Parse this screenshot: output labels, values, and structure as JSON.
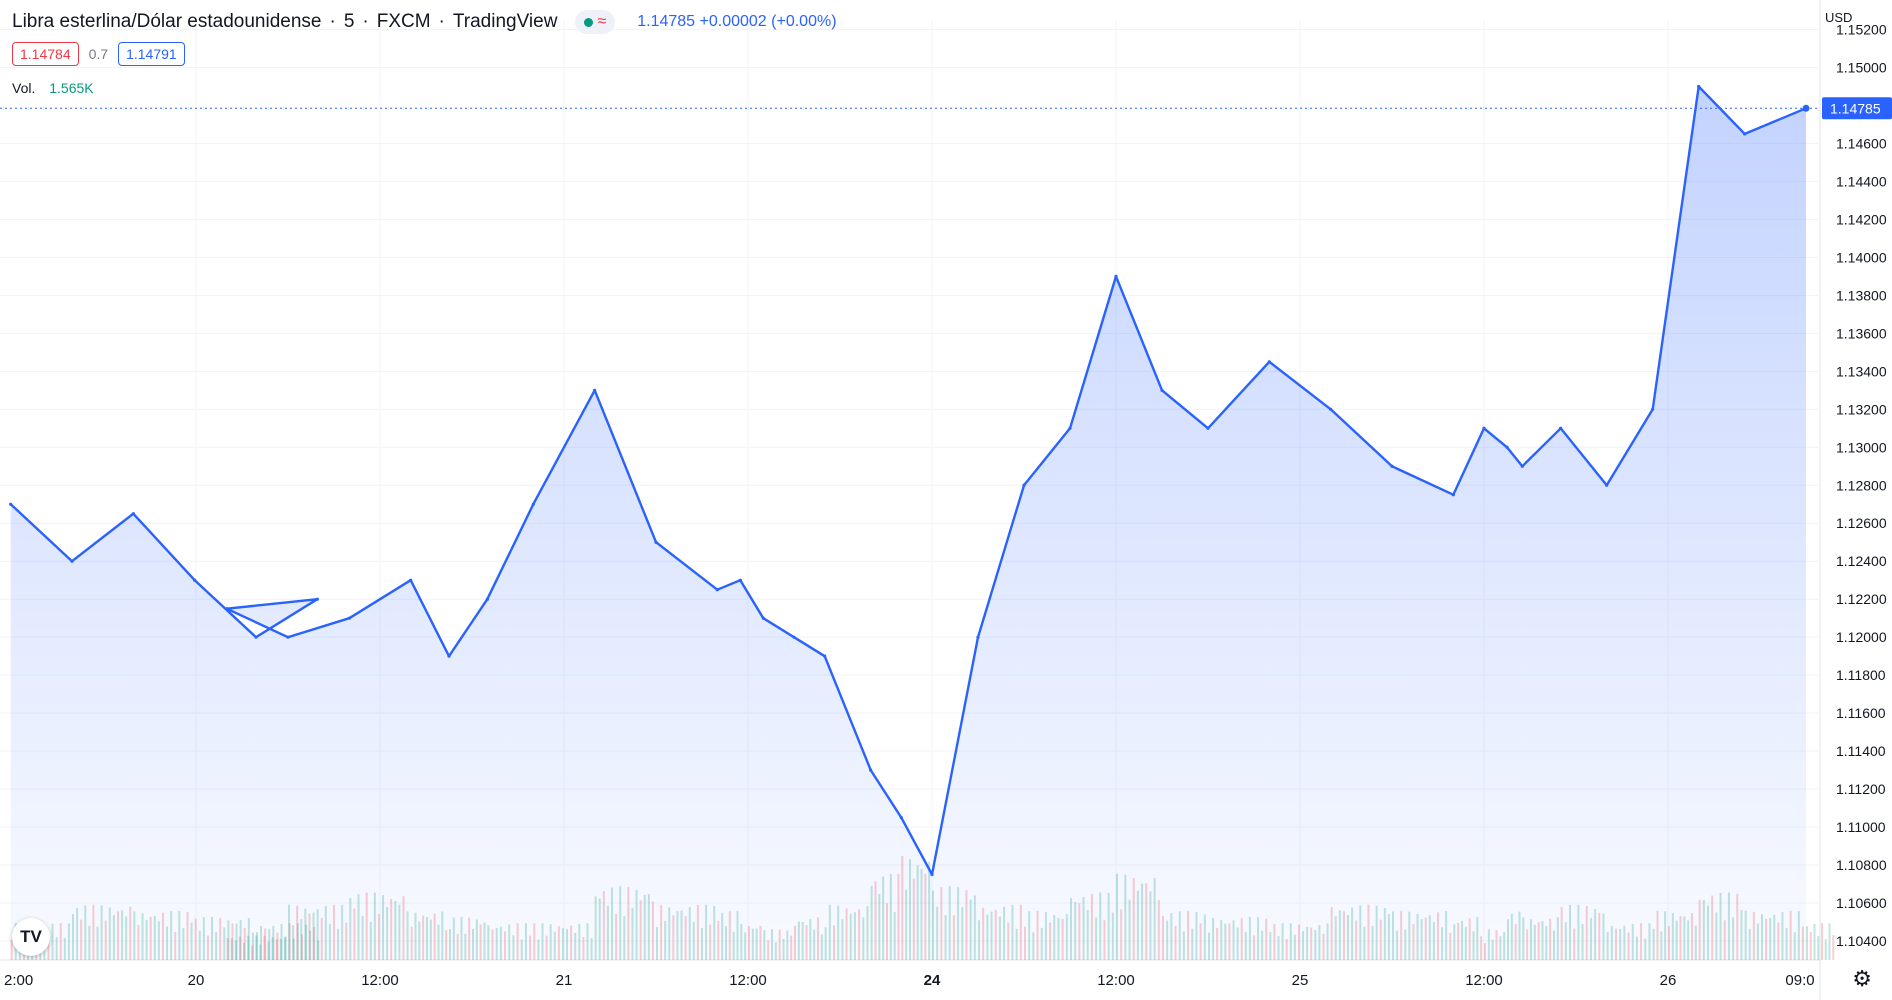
{
  "header": {
    "symbol": "Libra esterlina/Dólar estadounidense",
    "interval": "5",
    "exchange": "FXCM",
    "source": "TradingView",
    "last": "1.14785",
    "change": "+0.00002",
    "change_pct": "(+0.00%)"
  },
  "quote": {
    "bid": "1.14784",
    "spread": "0.7",
    "ask": "1.14791"
  },
  "volume": {
    "label": "Vol.",
    "value": "1.565K"
  },
  "currency_label": "USD",
  "icons": {
    "logo": "tradingview-logo",
    "settings": "gear-icon",
    "live": "live-dot-icon",
    "approx": "approx-icon"
  },
  "colors": {
    "line": "#2962ff",
    "bid": "#f23645",
    "ask": "#2962ff",
    "vol_up": "#089981",
    "vol_down": "#f23645"
  },
  "chart_data": {
    "type": "area",
    "y_ticks": [
      "1.15200",
      "1.15000",
      "1.14600",
      "1.14400",
      "1.14200",
      "1.14000",
      "1.13800",
      "1.13600",
      "1.13400",
      "1.13200",
      "1.13000",
      "1.12800",
      "1.12600",
      "1.12400",
      "1.12200",
      "1.12000",
      "1.11800",
      "1.11600",
      "1.11400",
      "1.11200",
      "1.11000",
      "1.10800",
      "1.10600",
      "1.10400"
    ],
    "x_ticks": [
      "2:00",
      "20",
      "12:00",
      "21",
      "12:00",
      "24",
      "12:00",
      "25",
      "12:00",
      "26",
      "09:0"
    ],
    "ylim": [
      1.103,
      1.1525
    ],
    "last_price_label": "1.14785",
    "x": [
      "19 02:00",
      "19 06:00",
      "19 10:00",
      "19 14:00",
      "19 18:00",
      "19 22:00",
      "20 02:00",
      "20 06:00",
      "20 10:00",
      "20 14:00",
      "20 16:30",
      "20 19:00",
      "20 22:00",
      "21 02:00",
      "21 06:00",
      "21 10:00",
      "21 11:30",
      "21 13:00",
      "21 15:00",
      "21 17:00",
      "21 20:00",
      "21 22:00",
      "24 00:00",
      "24 03:00",
      "24 06:00",
      "24 09:00",
      "24 12:00",
      "24 15:00",
      "24 18:00",
      "24 22:00",
      "25 02:00",
      "25 06:00",
      "25 10:00",
      "25 12:00",
      "25 13:30",
      "25 14:30",
      "25 17:00",
      "25 20:00",
      "25 23:00",
      "26 02:00",
      "26 05:00",
      "26 09:00"
    ],
    "y": [
      1.127,
      1.124,
      1.1265,
      1.123,
      1.12,
      1.122,
      1.1215,
      1.12,
      1.121,
      1.123,
      1.119,
      1.122,
      1.127,
      1.133,
      1.125,
      1.1225,
      1.123,
      1.121,
      1.12,
      1.119,
      1.113,
      1.1105,
      1.1075,
      1.12,
      1.128,
      1.131,
      1.139,
      1.133,
      1.131,
      1.1345,
      1.132,
      1.129,
      1.1275,
      1.131,
      1.13,
      1.129,
      1.131,
      1.128,
      1.132,
      1.149,
      1.1465,
      1.14785
    ],
    "volume": [
      30,
      45,
      40,
      35,
      30,
      25,
      20,
      45,
      55,
      40,
      35,
      30,
      30,
      60,
      45,
      40,
      30,
      25,
      35,
      45,
      70,
      85,
      60,
      45,
      40,
      55,
      70,
      40,
      35,
      30,
      45,
      40,
      35,
      25,
      40,
      35,
      45,
      30,
      40,
      55,
      40,
      30
    ],
    "volume_max": 130
  }
}
